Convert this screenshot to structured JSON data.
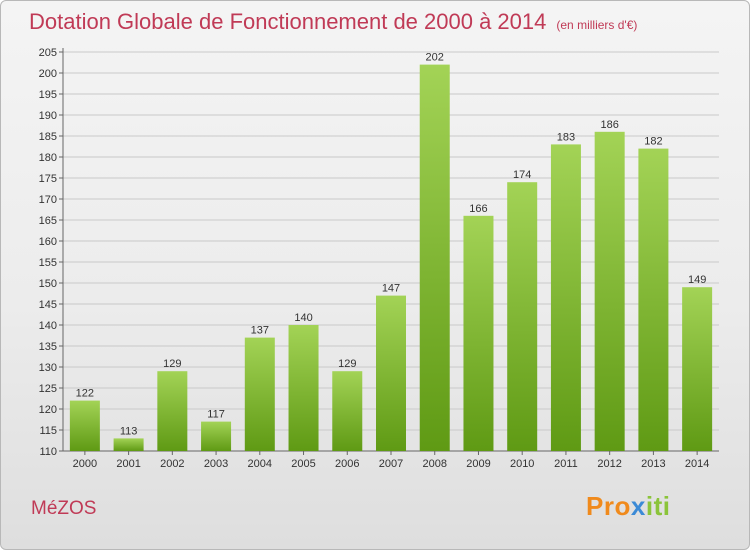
{
  "header": {
    "title": "Dotation Globale de Fonctionnement de 2000 à 2014",
    "subtitle": "(en milliers d'€)"
  },
  "footer": {
    "commune": "MéZOS",
    "logo_text": "Proxiti"
  },
  "colors": {
    "title": "#c03a56",
    "bar_top": "#a3d356",
    "bar_bottom": "#5f9a14",
    "logo_letters": [
      "#f08a1c",
      "#f08a1c",
      "#f08a1c",
      "#3b8ad6",
      "#8bc43a",
      "#8bc43a",
      "#8bc43a"
    ]
  },
  "chart_data": {
    "type": "bar",
    "title": "Dotation Globale de Fonctionnement de 2000 à 2014",
    "subtitle": "(en milliers d'€)",
    "xlabel": "",
    "ylabel": "",
    "categories": [
      "2000",
      "2001",
      "2002",
      "2003",
      "2004",
      "2005",
      "2006",
      "2007",
      "2008",
      "2009",
      "2010",
      "2011",
      "2012",
      "2013",
      "2014"
    ],
    "values": [
      122,
      113,
      129,
      117,
      137,
      140,
      129,
      147,
      202,
      166,
      174,
      183,
      186,
      182,
      149
    ],
    "ylim": [
      110,
      205
    ],
    "yticks": [
      110,
      115,
      120,
      125,
      130,
      135,
      140,
      145,
      150,
      155,
      160,
      165,
      170,
      175,
      180,
      185,
      190,
      195,
      200,
      205
    ],
    "grid": true,
    "legend": "none",
    "data_labels": true
  }
}
